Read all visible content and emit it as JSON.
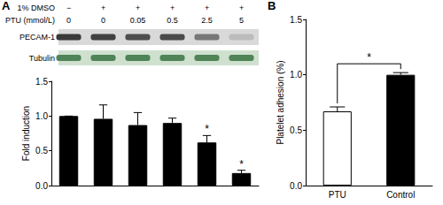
{
  "chart_data": [
    {
      "type": "bar",
      "categories": [
        null,
        null,
        null,
        null,
        null,
        null
      ],
      "values": [
        1.0,
        0.96,
        0.87,
        0.9,
        0.62,
        0.18
      ],
      "errors": [
        0,
        0.2,
        0.18,
        0.07,
        0.1,
        0.04
      ],
      "annotations": [
        null,
        null,
        null,
        null,
        "*",
        "*"
      ],
      "color": "#000000",
      "y_label": "Fold induction",
      "ylim": [
        0,
        1.5
      ],
      "yticks": [
        {
          "value": 0,
          "label": "0.0"
        },
        {
          "value": 0.5,
          "label": "0.5"
        },
        {
          "value": 1,
          "label": "1.0"
        },
        {
          "value": 1.5,
          "label": "1.5"
        }
      ],
      "grid": false,
      "tick_labels": "y"
    },
    {
      "type": "bar",
      "title": "B",
      "categories": [
        "PTU",
        "Control"
      ],
      "values": [
        0.67,
        1.0
      ],
      "errors": [
        0.04,
        0.02
      ],
      "colors": [
        "#ffffff",
        "#000000"
      ],
      "bracket": {
        "text": "*"
      },
      "y_label": "Platelet adhesion (%)",
      "ylim": [
        0,
        1.5
      ],
      "yticks": [
        {
          "value": 0,
          "label": "0.0"
        },
        {
          "value": 0.5,
          "label": "0.5"
        },
        {
          "value": 1,
          "label": "1.0"
        },
        {
          "value": 1.5,
          "label": "1.5"
        }
      ],
      "grid": false
    }
  ],
  "blot": {
    "panel": "A",
    "rows": [
      {
        "label": "1% DMSO",
        "lanes": [
          "−",
          "+",
          "+",
          "+",
          "+",
          "+"
        ]
      },
      {
        "label": "PTU (mmol/L)",
        "lanes": [
          "0",
          "0",
          "0.05",
          "0.5",
          "2.5",
          "5"
        ]
      }
    ],
    "bands": [
      "PECAM-1",
      "Tubulin"
    ]
  }
}
